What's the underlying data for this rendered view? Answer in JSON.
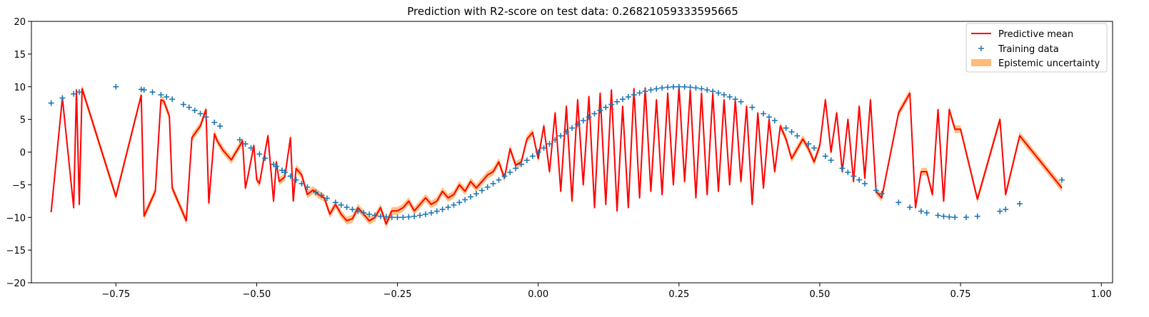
{
  "chart_data": {
    "type": "line",
    "title": "Prediction with R2-score on test data: 0.26821059333595665",
    "xlabel": "",
    "ylabel": "",
    "xlim": [
      -0.9,
      1.02
    ],
    "ylim": [
      -20,
      20
    ],
    "xticks": [
      -0.75,
      -0.5,
      -0.25,
      0.0,
      0.25,
      0.5,
      0.75,
      1.0
    ],
    "xtick_labels": [
      "−0.75",
      "−0.50",
      "−0.25",
      "0.00",
      "0.25",
      "0.50",
      "0.75",
      "1.00"
    ],
    "yticks": [
      -20,
      -15,
      -10,
      -5,
      0,
      5,
      10,
      15,
      20
    ],
    "ytick_labels": [
      "−20",
      "−15",
      "−10",
      "−5",
      "0",
      "5",
      "10",
      "15",
      "20"
    ],
    "grid": false,
    "legend_position": "top-right",
    "colors": {
      "predictive_mean": "#ff0000",
      "training_data": "#1f77b4",
      "epistemic_uncertainty": "#ffbb78"
    },
    "series": [
      {
        "name": "Predictive mean",
        "kind": "line",
        "x": [
          -0.865,
          -0.845,
          -0.825,
          -0.82,
          -0.815,
          -0.81,
          -0.75,
          -0.705,
          -0.7,
          -0.68,
          -0.67,
          -0.665,
          -0.655,
          -0.65,
          -0.625,
          -0.615,
          -0.6,
          -0.59,
          -0.585,
          -0.575,
          -0.57,
          -0.56,
          -0.545,
          -0.525,
          -0.52,
          -0.515,
          -0.505,
          -0.5,
          -0.495,
          -0.48,
          -0.47,
          -0.465,
          -0.46,
          -0.45,
          -0.44,
          -0.435,
          -0.43,
          -0.42,
          -0.41,
          -0.4,
          -0.39,
          -0.38,
          -0.37,
          -0.36,
          -0.35,
          -0.34,
          -0.33,
          -0.32,
          -0.31,
          -0.3,
          -0.29,
          -0.28,
          -0.27,
          -0.26,
          -0.25,
          -0.24,
          -0.23,
          -0.22,
          -0.21,
          -0.2,
          -0.19,
          -0.18,
          -0.17,
          -0.16,
          -0.15,
          -0.14,
          -0.13,
          -0.12,
          -0.11,
          -0.1,
          -0.09,
          -0.08,
          -0.07,
          -0.06,
          -0.05,
          -0.04,
          -0.03,
          -0.02,
          -0.01,
          0.0,
          0.01,
          0.02,
          0.03,
          0.04,
          0.05,
          0.06,
          0.07,
          0.08,
          0.09,
          0.1,
          0.11,
          0.12,
          0.13,
          0.14,
          0.15,
          0.16,
          0.17,
          0.18,
          0.19,
          0.2,
          0.21,
          0.22,
          0.23,
          0.24,
          0.25,
          0.26,
          0.27,
          0.28,
          0.29,
          0.3,
          0.31,
          0.32,
          0.33,
          0.34,
          0.35,
          0.36,
          0.37,
          0.38,
          0.39,
          0.4,
          0.41,
          0.42,
          0.43,
          0.44,
          0.45,
          0.46,
          0.47,
          0.48,
          0.49,
          0.5,
          0.51,
          0.52,
          0.53,
          0.54,
          0.55,
          0.56,
          0.57,
          0.58,
          0.59,
          0.6,
          0.61,
          0.64,
          0.66,
          0.67,
          0.68,
          0.69,
          0.7,
          0.71,
          0.72,
          0.73,
          0.74,
          0.75,
          0.78,
          0.82,
          0.83,
          0.855,
          0.93
        ],
        "y": [
          -9.2,
          8.3,
          -8.5,
          9.5,
          -8.0,
          9.7,
          -6.8,
          8.7,
          -9.8,
          -6.0,
          8.0,
          7.8,
          5.5,
          -5.5,
          -10.5,
          2.2,
          4.0,
          6.5,
          -7.8,
          2.8,
          1.7,
          0.3,
          -1.2,
          1.7,
          -5.5,
          -3.5,
          1.0,
          -4.2,
          -4.8,
          2.5,
          -7.5,
          -1.5,
          -4.5,
          -3.8,
          2.2,
          -7.5,
          -2.5,
          -3.5,
          -6.5,
          -5.8,
          -6.5,
          -7.0,
          -9.5,
          -8.0,
          -9.5,
          -10.5,
          -10.2,
          -8.5,
          -9.5,
          -10.5,
          -10.0,
          -8.5,
          -11.0,
          -9.0,
          -9.0,
          -8.5,
          -7.5,
          -9.0,
          -8.0,
          -7.0,
          -8.0,
          -7.5,
          -6.0,
          -7.0,
          -6.5,
          -5.0,
          -6.0,
          -4.5,
          -5.5,
          -4.5,
          -3.5,
          -3.0,
          -1.5,
          -4.0,
          0.5,
          -2.0,
          -1.5,
          2.0,
          3.0,
          -1.0,
          4.0,
          -3.0,
          6.0,
          -6.0,
          7.0,
          -7.5,
          8.0,
          -5.0,
          8.5,
          -8.5,
          9.0,
          -8.0,
          9.5,
          -9.0,
          7.0,
          -8.5,
          9.7,
          -7.0,
          9.8,
          -6.0,
          8.0,
          -6.5,
          9.0,
          -5.0,
          10.0,
          -4.5,
          9.5,
          -7.0,
          9.0,
          -6.5,
          9.0,
          -6.0,
          8.0,
          -5.0,
          8.0,
          -4.5,
          7.0,
          -8.0,
          6.0,
          -5.5,
          5.0,
          -3.0,
          4.0,
          2.0,
          -1.0,
          0.5,
          2.0,
          0.5,
          -1.5,
          1.0,
          8.0,
          0.0,
          6.0,
          -3.0,
          5.0,
          -4.5,
          7.0,
          -4.0,
          8.0,
          -6.0,
          -7.0,
          6.0,
          9.0,
          -8.5,
          -3.0,
          -3.0,
          -6.5,
          6.5,
          -7.5,
          6.5,
          3.5,
          3.5,
          -7.2,
          5.0,
          -6.5,
          2.5,
          -5.5
        ],
        "uncertainty_halfwidth": 0.6
      },
      {
        "name": "Training data",
        "kind": "scatter",
        "marker": "+",
        "function": "10*sin(2*pi*x)",
        "x": [
          -0.865,
          -0.845,
          -0.825,
          -0.815,
          -0.75,
          -0.705,
          -0.7,
          -0.685,
          -0.67,
          -0.66,
          -0.65,
          -0.63,
          -0.62,
          -0.61,
          -0.6,
          -0.59,
          -0.575,
          -0.565,
          -0.53,
          -0.52,
          -0.51,
          -0.495,
          -0.485,
          -0.47,
          -0.465,
          -0.455,
          -0.45,
          -0.44,
          -0.43,
          -0.42,
          -0.41,
          -0.395,
          -0.385,
          -0.375,
          -0.36,
          -0.35,
          -0.34,
          -0.33,
          -0.32,
          -0.31,
          -0.3,
          -0.29,
          -0.28,
          -0.27,
          -0.26,
          -0.25,
          -0.24,
          -0.23,
          -0.22,
          -0.21,
          -0.2,
          -0.19,
          -0.18,
          -0.17,
          -0.16,
          -0.15,
          -0.14,
          -0.13,
          -0.12,
          -0.11,
          -0.1,
          -0.09,
          -0.08,
          -0.07,
          -0.06,
          -0.05,
          -0.04,
          -0.03,
          -0.02,
          -0.01,
          0.0,
          0.01,
          0.02,
          0.03,
          0.04,
          0.05,
          0.06,
          0.07,
          0.08,
          0.09,
          0.1,
          0.11,
          0.12,
          0.13,
          0.14,
          0.15,
          0.16,
          0.17,
          0.18,
          0.19,
          0.2,
          0.21,
          0.22,
          0.23,
          0.24,
          0.25,
          0.26,
          0.27,
          0.28,
          0.29,
          0.3,
          0.31,
          0.32,
          0.33,
          0.34,
          0.35,
          0.36,
          0.38,
          0.4,
          0.41,
          0.42,
          0.44,
          0.45,
          0.46,
          0.48,
          0.49,
          0.51,
          0.52,
          0.54,
          0.55,
          0.56,
          0.57,
          0.58,
          0.6,
          0.61,
          0.64,
          0.66,
          0.68,
          0.69,
          0.71,
          0.72,
          0.73,
          0.74,
          0.76,
          0.78,
          0.82,
          0.83,
          0.855,
          0.93
        ]
      },
      {
        "name": "Epistemic uncertainty",
        "kind": "band"
      }
    ]
  }
}
